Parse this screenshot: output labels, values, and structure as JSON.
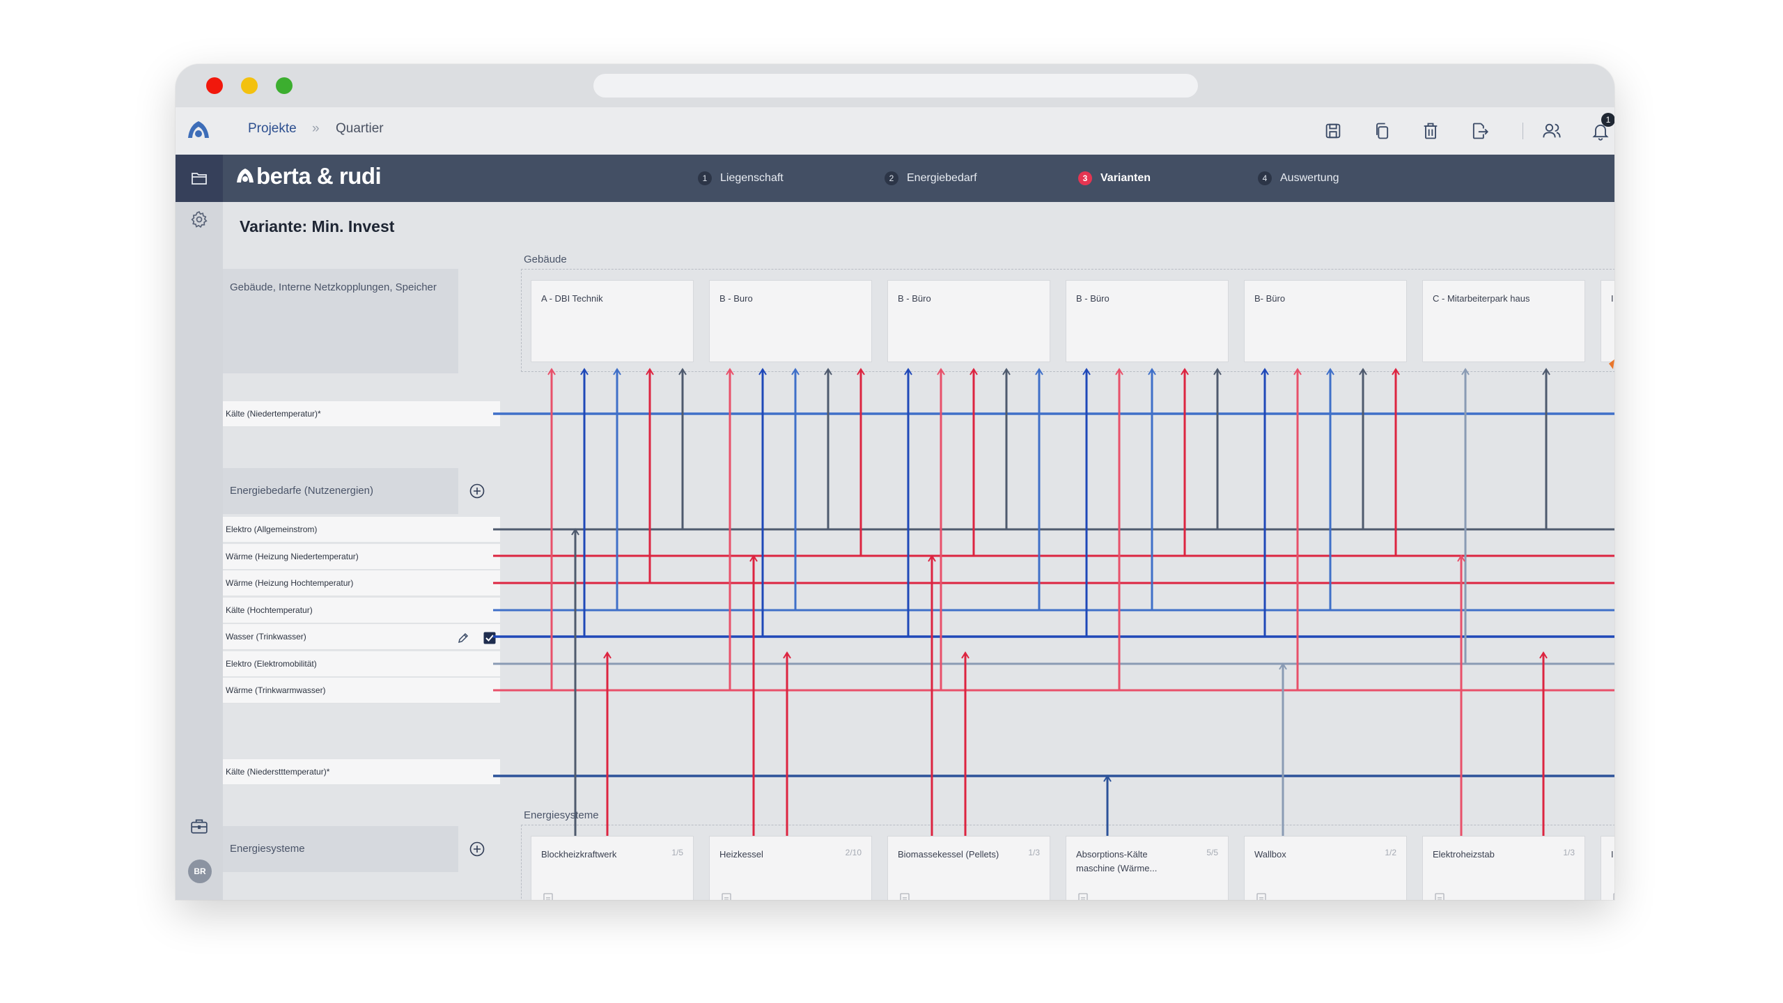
{
  "breadcrumb": {
    "projects": "Projekte",
    "separator": "»",
    "current": "Quartier"
  },
  "notifications": {
    "count": "1"
  },
  "brand": {
    "name": "berta & rudi"
  },
  "steps": [
    {
      "num": "1",
      "label": "Liegenschaft",
      "active": false
    },
    {
      "num": "2",
      "label": "Energiebedarf",
      "active": false
    },
    {
      "num": "3",
      "label": "Varianten",
      "active": true
    },
    {
      "num": "4",
      "label": "Auswertung",
      "active": false
    }
  ],
  "page": {
    "title": "Variante: Min. Invest"
  },
  "groups": {
    "buildings_group": "Gebäude, Interne Netzkopplungen, Speicher",
    "demands_group": "Energiebedarfe (Nutzenergien)",
    "systems_group": "Energiesysteme"
  },
  "sections": {
    "buildings": "Gebäude",
    "systems": "Energiesysteme"
  },
  "networks": {
    "top": "Kälte (Niedertemperatur)*",
    "bottom": "Kälte (Niederstttemperatur)*",
    "demands": [
      "Elektro (Allgemeinstrom)",
      "Wärme (Heizung Niedertemperatur)",
      "Wärme (Heizung Hochtemperatur)",
      "Kälte (Hochtemperatur)",
      "Wasser (Trinkwasser)",
      "Elektro (Elektromobilität)",
      "Wärme (Trinkwarmwasser)"
    ]
  },
  "buildings": [
    "A - DBI Technik",
    "B - Buro",
    "B - Büro",
    "B - Büro",
    "B- Büro",
    "C - Mitarbeiterpark haus",
    "I"
  ],
  "systems": [
    {
      "name": "Blockheizkraftwerk",
      "count": "1/5"
    },
    {
      "name": "Heizkessel",
      "count": "2/10"
    },
    {
      "name": "Biomassekessel (Pellets)",
      "count": "1/3"
    },
    {
      "name": "Absorptions-Kälte maschine (Wärme...",
      "count": "5/5"
    },
    {
      "name": "Wallbox",
      "count": "1/2"
    },
    {
      "name": "Elektroheizstab",
      "count": "1/3"
    },
    {
      "name": "I",
      "count": ""
    }
  ],
  "user": {
    "initials": "BR"
  },
  "colors": {
    "electric_gray": "#4e5a6e",
    "heat_pink": "#e8506a",
    "heat_red": "#dc2440",
    "cold_blue": "#3f6fc8",
    "water_blue": "#1f48b8",
    "mobility_gray": "#8a9bb4",
    "deep_cold_blue": "#2c5299",
    "accent_red": "#e53552"
  }
}
